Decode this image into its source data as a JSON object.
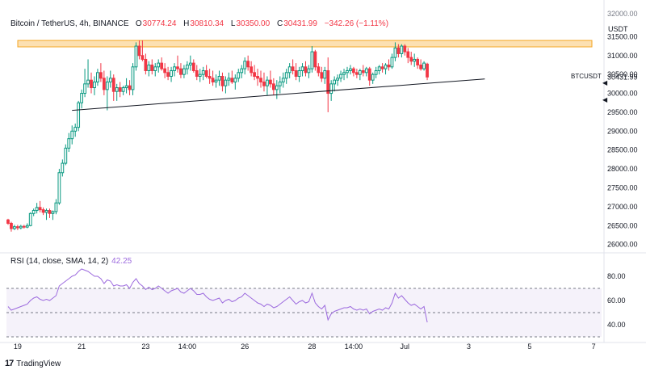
{
  "header": {
    "symbol": "Bitcoin / TetherUS, 4h, BINANCE",
    "o_label": "O",
    "o_value": "30774.24",
    "h_label": "H",
    "h_value": "30810.34",
    "l_label": "L",
    "l_value": "30350.00",
    "c_label": "C",
    "c_value": "30431.99",
    "change": "−342.26 (−1.11%)"
  },
  "currency": "USDT",
  "ticker_label": "BTCUSDT",
  "last_price": "30431.99",
  "rsi": {
    "label": "RSI (14, close, SMA, 14, 2)",
    "value": "42.25"
  },
  "branding": "TradingView",
  "colors": {
    "up": "#089981",
    "down": "#f23645",
    "rsi": "#9c6ade",
    "band": "#f5a623",
    "trend": "#131722"
  },
  "chart_data": {
    "type": "candlestick",
    "title": "Bitcoin / TetherUS, 4h, BINANCE",
    "ylim": [
      25800,
      32000
    ],
    "y_ticks": [
      26000,
      26500,
      27000,
      27500,
      28000,
      28500,
      29000,
      29500,
      30000,
      30500,
      31000,
      31500
    ],
    "y_tick_labels": [
      "26000.00",
      "26500.00",
      "27000.00",
      "27500.00",
      "28000.00",
      "28500.00",
      "29000.00",
      "29500.00",
      "30000.00",
      "30500.00",
      "31000.00",
      "31500.00"
    ],
    "x_ticks": [
      {
        "i": 3,
        "label": "19"
      },
      {
        "i": 23,
        "label": "21"
      },
      {
        "i": 43,
        "label": "23"
      },
      {
        "i": 56,
        "label": "14:00"
      },
      {
        "i": 74,
        "label": "26"
      },
      {
        "i": 95,
        "label": "28"
      },
      {
        "i": 108,
        "label": "14:00"
      },
      {
        "i": 124,
        "label": "Jul"
      },
      {
        "i": 144,
        "label": "3"
      },
      {
        "i": 163,
        "label": "5"
      },
      {
        "i": 183,
        "label": "7"
      }
    ],
    "x_count": 186,
    "candles": [
      [
        26650,
        26680,
        26520,
        26560
      ],
      [
        26560,
        26600,
        26340,
        26420
      ],
      [
        26420,
        26520,
        26380,
        26470
      ],
      [
        26470,
        26520,
        26380,
        26440
      ],
      [
        26440,
        26520,
        26400,
        26480
      ],
      [
        26480,
        26520,
        26420,
        26460
      ],
      [
        26460,
        26560,
        26430,
        26500
      ],
      [
        26500,
        26850,
        26480,
        26820
      ],
      [
        26820,
        26950,
        26750,
        26900
      ],
      [
        26900,
        27100,
        26820,
        26980
      ],
      [
        26980,
        27150,
        26850,
        26920
      ],
      [
        26920,
        26980,
        26780,
        26850
      ],
      [
        26850,
        26950,
        26650,
        26900
      ],
      [
        26900,
        26950,
        26700,
        26820
      ],
      [
        26820,
        26900,
        26650,
        26870
      ],
      [
        26870,
        27200,
        26800,
        27100
      ],
      [
        27100,
        28000,
        27050,
        27900
      ],
      [
        27900,
        28250,
        27800,
        28150
      ],
      [
        28150,
        28650,
        28100,
        28550
      ],
      [
        28550,
        28950,
        28450,
        28800
      ],
      [
        28800,
        29150,
        28650,
        29000
      ],
      [
        29000,
        29200,
        28850,
        29100
      ],
      [
        29100,
        29800,
        29000,
        29750
      ],
      [
        29750,
        30100,
        29600,
        30000
      ],
      [
        30000,
        30650,
        29900,
        30250
      ],
      [
        30250,
        30900,
        30150,
        30350
      ],
      [
        30350,
        30550,
        30000,
        30150
      ],
      [
        30150,
        30450,
        29950,
        30300
      ],
      [
        30300,
        30650,
        30200,
        30550
      ],
      [
        30550,
        30800,
        30300,
        30400
      ],
      [
        30400,
        30600,
        29950,
        30100
      ],
      [
        30100,
        30450,
        29550,
        30300
      ],
      [
        30300,
        30600,
        30150,
        30400
      ],
      [
        30400,
        30500,
        29800,
        30050
      ],
      [
        30050,
        30250,
        29800,
        30150
      ],
      [
        30150,
        30300,
        29900,
        30050
      ],
      [
        30050,
        30200,
        29950,
        30150
      ],
      [
        30150,
        30400,
        30000,
        30200
      ],
      [
        30200,
        30350,
        29950,
        30100
      ],
      [
        30100,
        30800,
        29950,
        30700
      ],
      [
        30700,
        31350,
        30600,
        31250
      ],
      [
        31250,
        31400,
        30900,
        31000
      ],
      [
        31000,
        31400,
        30850,
        30900
      ],
      [
        30900,
        31050,
        30500,
        30600
      ],
      [
        30600,
        30850,
        30450,
        30750
      ],
      [
        30750,
        30900,
        30500,
        30600
      ],
      [
        30600,
        30800,
        30450,
        30700
      ],
      [
        30700,
        30900,
        30550,
        30800
      ],
      [
        30800,
        30950,
        30600,
        30650
      ],
      [
        30650,
        30800,
        30400,
        30550
      ],
      [
        30550,
        30700,
        30350,
        30450
      ],
      [
        30450,
        30700,
        30300,
        30600
      ],
      [
        30600,
        30800,
        30450,
        30700
      ],
      [
        30700,
        31000,
        30550,
        30650
      ],
      [
        30650,
        30800,
        30400,
        30500
      ],
      [
        30500,
        30750,
        30400,
        30650
      ],
      [
        30650,
        30850,
        30500,
        30750
      ],
      [
        30750,
        31000,
        30600,
        30800
      ],
      [
        30800,
        30900,
        30550,
        30600
      ],
      [
        30600,
        30750,
        30350,
        30450
      ],
      [
        30450,
        30650,
        30300,
        30500
      ],
      [
        30500,
        30700,
        30350,
        30600
      ],
      [
        30600,
        30750,
        30400,
        30450
      ],
      [
        30450,
        30650,
        30250,
        30400
      ],
      [
        30400,
        30600,
        30200,
        30300
      ],
      [
        30300,
        30500,
        30150,
        30350
      ],
      [
        30350,
        30600,
        30200,
        30450
      ],
      [
        30450,
        30550,
        30050,
        30200
      ],
      [
        30200,
        30450,
        30000,
        30350
      ],
      [
        30350,
        30550,
        30200,
        30400
      ],
      [
        30400,
        30600,
        30250,
        30300
      ],
      [
        30300,
        30500,
        30100,
        30400
      ],
      [
        30400,
        30650,
        30300,
        30550
      ],
      [
        30550,
        30750,
        30400,
        30650
      ],
      [
        30650,
        30950,
        30500,
        30850
      ],
      [
        30850,
        31000,
        30600,
        30700
      ],
      [
        30700,
        30850,
        30450,
        30550
      ],
      [
        30550,
        30750,
        30350,
        30450
      ],
      [
        30450,
        30650,
        30200,
        30400
      ],
      [
        30400,
        30600,
        30150,
        30300
      ],
      [
        30300,
        30550,
        30050,
        30200
      ],
      [
        30200,
        30450,
        29950,
        30350
      ],
      [
        30350,
        30600,
        30150,
        30250
      ],
      [
        30250,
        30400,
        29950,
        30100
      ],
      [
        30100,
        30350,
        29850,
        30200
      ],
      [
        30200,
        30450,
        30000,
        30300
      ],
      [
        30300,
        30550,
        30150,
        30400
      ],
      [
        30400,
        30650,
        30250,
        30550
      ],
      [
        30550,
        30800,
        30400,
        30700
      ],
      [
        30700,
        30900,
        30500,
        30600
      ],
      [
        30600,
        30800,
        30350,
        30450
      ],
      [
        30450,
        30700,
        30300,
        30600
      ],
      [
        30600,
        30800,
        30450,
        30700
      ],
      [
        30700,
        30850,
        30450,
        30550
      ],
      [
        30550,
        30750,
        30400,
        30650
      ],
      [
        30650,
        31250,
        30550,
        31100
      ],
      [
        31100,
        31150,
        30600,
        30700
      ],
      [
        30700,
        30800,
        30450,
        30550
      ],
      [
        30550,
        30700,
        30300,
        30400
      ],
      [
        30400,
        30700,
        30250,
        30600
      ],
      [
        30600,
        30950,
        29500,
        30000
      ],
      [
        30000,
        30350,
        29800,
        30250
      ],
      [
        30250,
        30450,
        30050,
        30350
      ],
      [
        30350,
        30500,
        30200,
        30400
      ],
      [
        30400,
        30600,
        30300,
        30500
      ],
      [
        30500,
        30650,
        30350,
        30550
      ],
      [
        30550,
        30700,
        30400,
        30600
      ],
      [
        30600,
        30750,
        30500,
        30650
      ],
      [
        30650,
        30700,
        30450,
        30550
      ],
      [
        30550,
        30650,
        30400,
        30500
      ],
      [
        30500,
        30650,
        30350,
        30600
      ],
      [
        30600,
        30750,
        30450,
        30550
      ],
      [
        30550,
        30700,
        30450,
        30650
      ],
      [
        30650,
        30700,
        30200,
        30350
      ],
      [
        30350,
        30550,
        30250,
        30500
      ],
      [
        30500,
        30700,
        30400,
        30600
      ],
      [
        30600,
        30750,
        30500,
        30700
      ],
      [
        30700,
        30800,
        30550,
        30650
      ],
      [
        30650,
        30800,
        30500,
        30750
      ],
      [
        30750,
        30900,
        30600,
        30700
      ],
      [
        30700,
        31050,
        30650,
        30950
      ],
      [
        30950,
        31350,
        30850,
        31200
      ],
      [
        31200,
        31300,
        30950,
        31050
      ],
      [
        31050,
        31300,
        30950,
        31250
      ],
      [
        31250,
        31300,
        31000,
        31100
      ],
      [
        31100,
        31200,
        30800,
        30950
      ],
      [
        30950,
        31100,
        30750,
        30850
      ],
      [
        30850,
        31050,
        30700,
        30900
      ],
      [
        30900,
        30950,
        30650,
        30750
      ],
      [
        30750,
        30900,
        30600,
        30650
      ],
      [
        30650,
        30850,
        30600,
        30800
      ],
      [
        30774,
        30810,
        30350,
        30432
      ]
    ],
    "resistance_band": [
      31230,
      31400
    ],
    "trendline": {
      "start": [
        20,
        29550
      ],
      "end": [
        149,
        30380
      ]
    },
    "rsi_ylim": [
      28,
      88
    ],
    "rsi_levels": [
      70,
      50,
      30
    ],
    "rsi_ticks": [
      40,
      60,
      80
    ],
    "rsi_tick_labels": [
      "40.00",
      "60.00",
      "80.00"
    ],
    "rsi_values": [
      55,
      52,
      53,
      54,
      55,
      56,
      57,
      60,
      62,
      63,
      61,
      60,
      61,
      60,
      62,
      64,
      72,
      74,
      76,
      78,
      80,
      81,
      84,
      86,
      85,
      84,
      82,
      80,
      80,
      78,
      74,
      77,
      76,
      72,
      73,
      72,
      72,
      73,
      70,
      75,
      78,
      74,
      72,
      69,
      71,
      69,
      70,
      72,
      70,
      68,
      66,
      68,
      69,
      70,
      67,
      66,
      68,
      70,
      68,
      65,
      65,
      66,
      63,
      61,
      60,
      61,
      62,
      58,
      60,
      61,
      59,
      60,
      62,
      63,
      66,
      64,
      62,
      60,
      58,
      57,
      55,
      57,
      56,
      54,
      55,
      57,
      59,
      61,
      63,
      60,
      57,
      59,
      60,
      58,
      59,
      66,
      58,
      55,
      53,
      56,
      44,
      49,
      51,
      52,
      53,
      54,
      54,
      55,
      53,
      52,
      53,
      52,
      53,
      49,
      51,
      52,
      53,
      52,
      54,
      53,
      58,
      66,
      62,
      64,
      61,
      58,
      56,
      57,
      55,
      53,
      55,
      42
    ]
  }
}
